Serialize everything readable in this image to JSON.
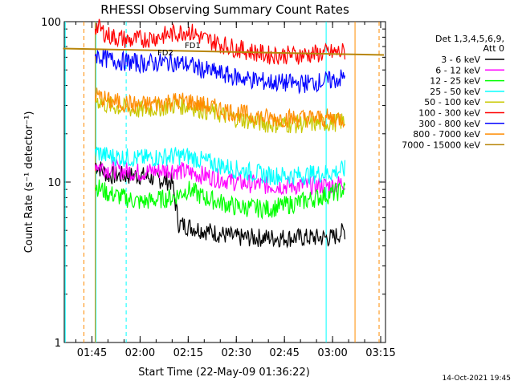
{
  "chart_data": {
    "type": "line",
    "title": "RHESSI Observing Summary Count Rates",
    "xlabel": "Start Time (22-May-09 01:36:22)",
    "ylabel": "Count Rate (s⁻¹ detector⁻¹)",
    "x_time_range": [
      "01:36:22",
      "03:16:30"
    ],
    "x_ticks": [
      "01:45",
      "02:00",
      "02:15",
      "02:30",
      "02:45",
      "03:00",
      "03:15"
    ],
    "y_scale": "log",
    "ylim": [
      1,
      100
    ],
    "y_ticks": [
      "1",
      "10",
      "100"
    ],
    "legend_title": [
      "Det 1,3,4,5,6,9,",
      "Att 0"
    ],
    "series": [
      {
        "name": "3 - 6 keV",
        "color": "#000000",
        "x": [
          "01:46",
          "01:50",
          "02:00",
          "02:10",
          "02:12",
          "02:20",
          "02:30",
          "02:40",
          "02:50",
          "03:00",
          "03:04"
        ],
        "values": [
          13,
          11,
          11,
          10,
          5.5,
          5,
          4.5,
          4.5,
          4.5,
          4.5,
          5
        ]
      },
      {
        "name": "6 - 12 keV",
        "color": "#ff00ff",
        "x": [
          "01:46",
          "01:50",
          "02:00",
          "02:10",
          "02:15",
          "02:20",
          "02:30",
          "02:40",
          "02:50",
          "03:00",
          "03:04"
        ],
        "values": [
          13,
          12,
          11.5,
          12,
          11.5,
          11,
          10,
          9.5,
          9.5,
          9.5,
          10
        ]
      },
      {
        "name": "12 - 25 keV",
        "color": "#00ff00",
        "x": [
          "01:46",
          "01:50",
          "02:00",
          "02:10",
          "02:15",
          "02:20",
          "02:30",
          "02:40",
          "02:50",
          "03:00",
          "03:04"
        ],
        "values": [
          9.5,
          8.5,
          7.5,
          8,
          9,
          8,
          7,
          6.8,
          7.5,
          8.5,
          9
        ]
      },
      {
        "name": "25 - 50 keV",
        "color": "#00ffff",
        "x": [
          "01:46",
          "01:50",
          "02:00",
          "02:10",
          "02:15",
          "02:20",
          "02:30",
          "02:40",
          "02:50",
          "03:00",
          "03:04"
        ],
        "values": [
          15.5,
          14.5,
          14,
          14.5,
          14.5,
          13.5,
          12,
          11,
          11,
          11.5,
          12
        ]
      },
      {
        "name": "50 - 100 keV",
        "color": "#c8c800",
        "x": [
          "01:46",
          "01:50",
          "02:00",
          "02:10",
          "02:15",
          "02:20",
          "02:30",
          "02:40",
          "02:50",
          "03:00",
          "03:04"
        ],
        "values": [
          33,
          30,
          28,
          30,
          30,
          28,
          25,
          23,
          23,
          23.5,
          24
        ]
      },
      {
        "name": "100 - 300 keV",
        "color": "#ff0000",
        "x": [
          "01:46",
          "01:50",
          "01:57",
          "02:05",
          "02:15",
          "02:20",
          "02:30",
          "02:40",
          "02:50",
          "03:00",
          "03:04"
        ],
        "values": [
          95,
          82,
          76,
          80,
          88,
          78,
          68,
          62,
          62,
          64,
          65
        ]
      },
      {
        "name": "300 - 800 keV",
        "color": "#0000ff",
        "x": [
          "01:46",
          "01:50",
          "02:00",
          "02:10",
          "02:15",
          "02:20",
          "02:30",
          "02:40",
          "02:50",
          "03:00",
          "03:04"
        ],
        "values": [
          62,
          58,
          55,
          56,
          54,
          50,
          45,
          42,
          41,
          43,
          45
        ]
      },
      {
        "name": "800 - 7000 keV",
        "color": "#ff8c00",
        "x": [
          "01:46",
          "01:50",
          "02:00",
          "02:10",
          "02:15",
          "02:20",
          "02:30",
          "02:40",
          "02:50",
          "03:00",
          "03:04"
        ],
        "values": [
          35,
          32,
          30,
          32,
          32,
          30,
          27,
          25,
          25,
          25,
          25
        ]
      },
      {
        "name": "7000 - 15000 keV",
        "color": "#b8860b",
        "x": [
          "01:36",
          "03:16"
        ],
        "values": [
          68,
          62
        ]
      }
    ],
    "annotations": [
      "FD2",
      "FD1"
    ],
    "footer_date": "14-Oct-2021 19:45",
    "grid": false,
    "legend_position": "right"
  }
}
